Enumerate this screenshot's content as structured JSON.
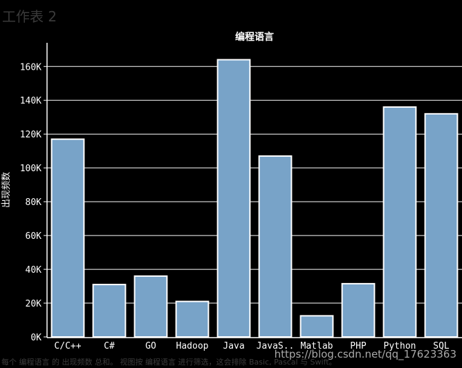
{
  "sheet_title": "工作表 2",
  "caption": "每个 编程语言 的 出现频数 总和。 视图按 编程语言 进行筛选，这会排除 Basic, Pascal 与 Swift。",
  "watermark": "https://blog.csdn.net/qq_17623363",
  "colors": {
    "background": "#000000",
    "bar": "#78a3c8",
    "bar_stroke": "#ffffff",
    "grid": "#ffffff",
    "text": "#ffffff"
  },
  "chart_data": {
    "type": "bar",
    "title": "编程语言",
    "xlabel": "",
    "ylabel": "出现频数",
    "categories": [
      "C/C++",
      "C#",
      "GO",
      "Hadoop",
      "Java",
      "JavaS..",
      "Matlab",
      "PHP",
      "Python",
      "SQL"
    ],
    "values": [
      117000,
      31000,
      36000,
      21000,
      164000,
      107000,
      12500,
      31500,
      136000,
      132000
    ],
    "ylim": [
      0,
      174000
    ],
    "yticks": [
      0,
      20000,
      40000,
      60000,
      80000,
      100000,
      120000,
      140000,
      160000
    ],
    "ytick_labels": [
      "0K",
      "20K",
      "40K",
      "60K",
      "80K",
      "100K",
      "120K",
      "140K",
      "160K"
    ],
    "grid": true
  }
}
